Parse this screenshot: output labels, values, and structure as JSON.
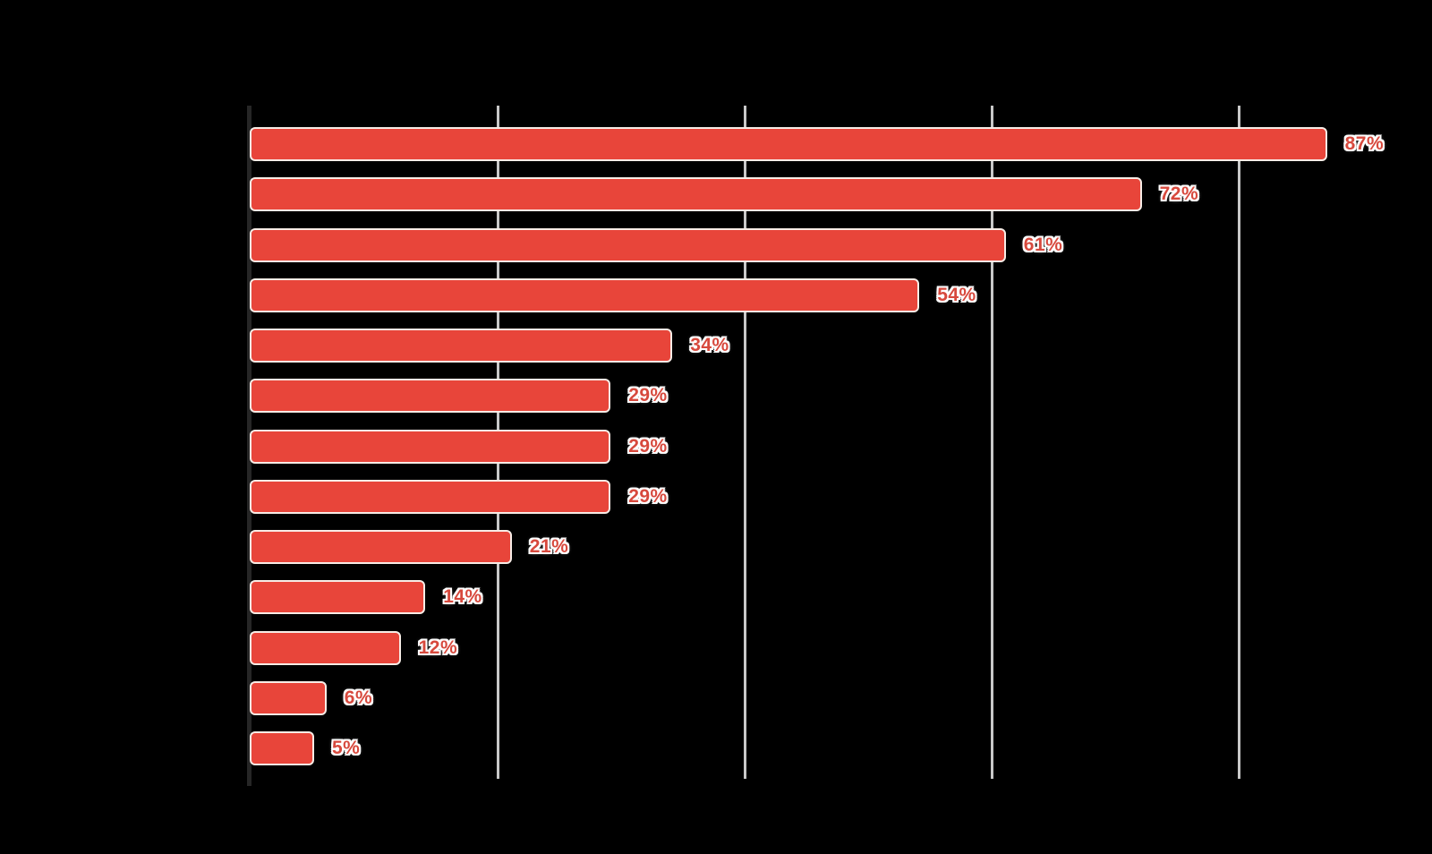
{
  "chart_data": {
    "type": "bar",
    "orientation": "horizontal",
    "title": "",
    "values": [
      87,
      72,
      61,
      54,
      34,
      29,
      29,
      29,
      21,
      14,
      12,
      6,
      5
    ],
    "value_labels": [
      "87%",
      "72%",
      "61%",
      "54%",
      "34%",
      "29%",
      "29%",
      "29%",
      "21%",
      "14%",
      "12%",
      "6%",
      "5%"
    ],
    "categories_visible": false,
    "xlim": [
      0,
      100
    ],
    "x_gridlines_pct": [
      20,
      40,
      60,
      80
    ],
    "grid": "vertical-only",
    "legend": "none",
    "value_label_position": "outside-end"
  },
  "colors": {
    "background": "#000000",
    "bar_fill": "#E8453A",
    "bar_stroke": "#F7ECE6",
    "value_label": "#D7493D",
    "value_label_halo": "#FFFFFF",
    "gridline": "#C8C8C8",
    "axis_line": "#262626"
  }
}
